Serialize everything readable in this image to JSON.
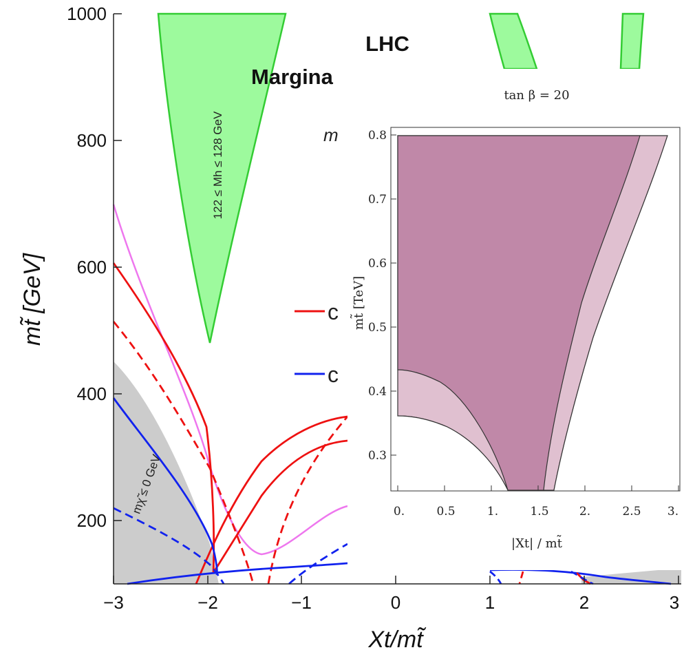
{
  "main_chart": {
    "title_line1": "LHC",
    "title_line2": "Margina",
    "x_label": "Xt/mt̃",
    "y_label": "mt̃ [GeV]",
    "x_ticks": [
      "−3",
      "−2",
      "−1",
      "0",
      "1",
      "2",
      "3"
    ],
    "y_ticks": [
      "200",
      "400",
      "600",
      "800",
      "1000"
    ],
    "higgs_band_label": "122 ≤ Mh ≤ 128 GeV",
    "gray_region_label": "mχ̃ ≤ 0 GeV",
    "legend_items": [
      "c",
      "c"
    ],
    "partial_label": "m",
    "colors": {
      "higgs_band": "#9dfa9d",
      "higgs_edge": "#33cc33",
      "gray_region": "#cccccc",
      "red": "#ee1111",
      "blue": "#1122ee",
      "pink": "#ee77ee"
    }
  },
  "inset": {
    "title": "tan β = 20",
    "x_label": "|Xt| / mt̃",
    "y_label": "mt̃ [TeV]",
    "x_ticks": [
      "0.",
      "0.5",
      "1.",
      "1.5",
      "2.",
      "2.5",
      "3."
    ],
    "y_ticks": [
      "0.3",
      "0.4",
      "0.5",
      "0.6",
      "0.7",
      "0.8"
    ],
    "colors": {
      "dark_region": "#c088a8",
      "light_region": "#e0c0d0"
    }
  },
  "chart_data": [
    {
      "type": "line",
      "xlim": [
        -3,
        3
      ],
      "ylim": [
        100,
        1000
      ],
      "xlabel": "Xt/mt̃",
      "ylabel": "mt̃ [GeV]",
      "series": [
        {
          "style": "red-solid",
          "x": [
            -3,
            -2.5,
            -2,
            -1.5,
            -1
          ],
          "y": [
            605,
            430,
            120,
            330,
            360
          ]
        },
        {
          "style": "red-dashed",
          "x": [
            -3,
            -2.5,
            -2,
            -1.6,
            -1.2
          ],
          "y": [
            510,
            340,
            150,
            100,
            300
          ]
        },
        {
          "style": "pink-solid",
          "x": [
            -3,
            -2.5,
            -2,
            -1.5,
            -1,
            -0.5
          ],
          "y": [
            700,
            420,
            200,
            150,
            200,
            225
          ]
        },
        {
          "style": "blue-solid",
          "x": [
            -3,
            -2.5,
            -2
          ],
          "y": [
            395,
            260,
            115
          ]
        },
        {
          "style": "blue-dashed",
          "x": [
            -3,
            -2.5,
            -2,
            -1.8
          ],
          "y": [
            222,
            170,
            118,
            100
          ]
        }
      ],
      "regions": [
        {
          "name": "higgs-band",
          "x": [
            -2.5,
            -2.1,
            -2,
            -1.9,
            -1.15
          ],
          "y": [
            1000,
            650,
            480,
            650,
            1000
          ]
        },
        {
          "name": "gray-excluded",
          "x": [
            -3,
            -2.3,
            -2
          ],
          "y": [
            450,
            250,
            100
          ]
        }
      ]
    },
    {
      "type": "area",
      "title": "tan β = 20",
      "xlabel": "|Xt| / mt̃",
      "ylabel": "mt̃ [TeV]",
      "xlim": [
        0,
        3
      ],
      "ylim": [
        0.25,
        0.8
      ],
      "series": [
        {
          "style": "dark-boundary-left",
          "x": [
            0,
            0.5,
            0.9,
            1.2
          ],
          "y": [
            0.435,
            0.4,
            0.33,
            0.25
          ]
        },
        {
          "style": "dark-boundary-right",
          "x": [
            1.55,
            1.8,
            2.2,
            2.6
          ],
          "y": [
            0.25,
            0.42,
            0.63,
            0.8
          ]
        },
        {
          "style": "light-boundary-left",
          "x": [
            0,
            0.5,
            0.8,
            1.05
          ],
          "y": [
            0.36,
            0.34,
            0.3,
            0.25
          ]
        },
        {
          "style": "light-boundary-right",
          "x": [
            1.68,
            2.1,
            2.5,
            2.9
          ],
          "y": [
            0.25,
            0.45,
            0.63,
            0.8
          ]
        }
      ]
    }
  ]
}
